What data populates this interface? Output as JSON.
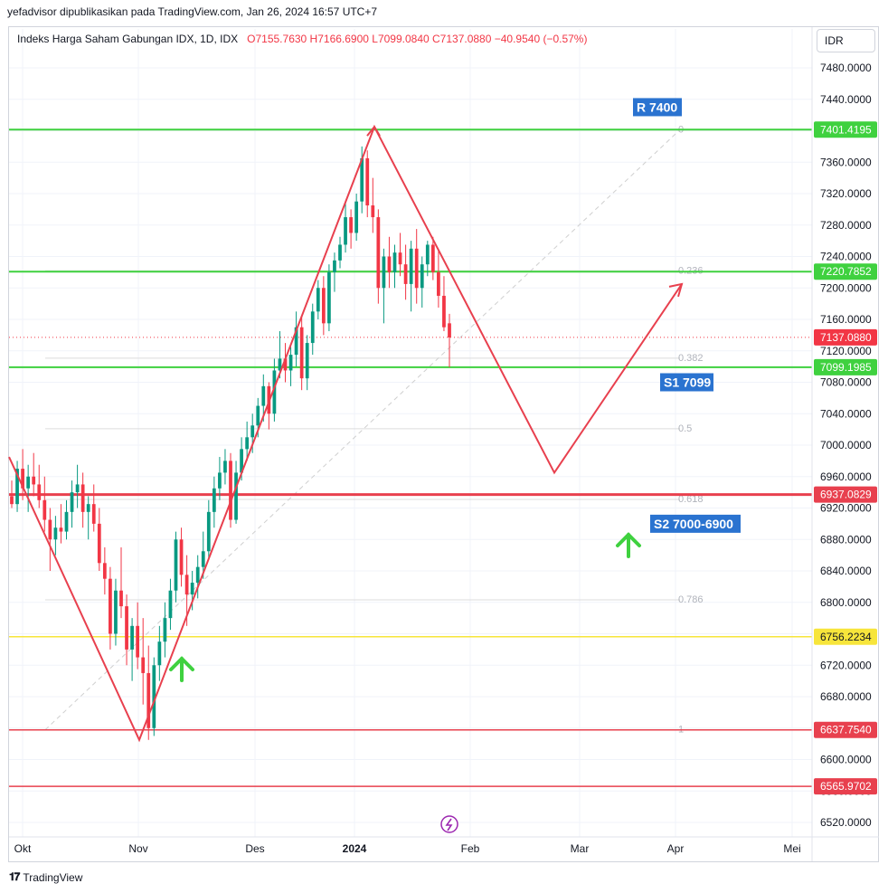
{
  "header": {
    "caption": "yefadvisor dipublikasikan pada TradingView.com, Jan 26, 2024 16:57 UTC+7",
    "symbol": "Indeks Harga Saham Gabungan IDX, 1D, IDX",
    "ohlc": "O7155.7630  H7166.6900  L7099.0840  C7137.0880  −40.9540 (−0.57%)",
    "currency": "IDR"
  },
  "footer": {
    "brand": "TradingView"
  },
  "colors": {
    "up": "#089981",
    "down": "#f23645",
    "green_line": "#3fd13f",
    "red_line": "#e8404e",
    "yellow_line": "#f7e53b",
    "blue_label": "#2a73d0"
  },
  "chart_data": {
    "type": "candlestick",
    "y_range": [
      6497.9,
      7504.3
    ],
    "y_ticks": [
      "7480.0000",
      "7440.0000",
      "7400.0000",
      "7360.0000",
      "7320.0000",
      "7280.0000",
      "7240.0000",
      "7200.0000",
      "7160.0000",
      "7120.0000",
      "7080.0000",
      "7040.0000",
      "7000.0000",
      "6960.0000",
      "6920.0000",
      "6880.0000",
      "6840.0000",
      "6800.0000",
      "6760.0000",
      "6720.0000",
      "6680.0000",
      "6640.0000",
      "6600.0000",
      "6560.0000",
      "6520.0000"
    ],
    "x_labels": [
      {
        "label": "Okt",
        "month": 10
      },
      {
        "label": "Nov",
        "month": 11
      },
      {
        "label": "Des",
        "month": 12
      },
      {
        "label": "2024",
        "month": 13
      },
      {
        "label": "Feb",
        "month": 14
      },
      {
        "label": "Mar",
        "month": 15
      },
      {
        "label": "Apr",
        "month": 16
      },
      {
        "label": "Mei",
        "month": 17
      }
    ],
    "candles": [
      [
        6935,
        6955,
        6920,
        6925
      ],
      [
        6925,
        6980,
        6915,
        6970
      ],
      [
        6970,
        6995,
        6930,
        6945
      ],
      [
        6945,
        6975,
        6915,
        6960
      ],
      [
        6960,
        6990,
        6935,
        6950
      ],
      [
        6950,
        6975,
        6920,
        6930
      ],
      [
        6930,
        6960,
        6890,
        6905
      ],
      [
        6905,
        6920,
        6840,
        6880
      ],
      [
        6880,
        6910,
        6860,
        6895
      ],
      [
        6895,
        6925,
        6875,
        6890
      ],
      [
        6890,
        6930,
        6880,
        6915
      ],
      [
        6915,
        6955,
        6895,
        6940
      ],
      [
        6940,
        6975,
        6920,
        6950
      ],
      [
        6950,
        6965,
        6895,
        6915
      ],
      [
        6915,
        6935,
        6880,
        6925
      ],
      [
        6925,
        6950,
        6890,
        6900
      ],
      [
        6900,
        6920,
        6840,
        6850
      ],
      [
        6850,
        6870,
        6810,
        6830
      ],
      [
        6830,
        6845,
        6740,
        6760
      ],
      [
        6760,
        6830,
        6745,
        6815
      ],
      [
        6815,
        6870,
        6780,
        6795
      ],
      [
        6795,
        6810,
        6720,
        6740
      ],
      [
        6740,
        6780,
        6700,
        6770
      ],
      [
        6770,
        6800,
        6715,
        6730
      ],
      [
        6730,
        6780,
        6670,
        6710
      ],
      [
        6710,
        6745,
        6625,
        6640
      ],
      [
        6640,
        6730,
        6630,
        6720
      ],
      [
        6720,
        6770,
        6700,
        6750
      ],
      [
        6750,
        6800,
        6730,
        6780
      ],
      [
        6780,
        6830,
        6765,
        6815
      ],
      [
        6815,
        6890,
        6800,
        6880
      ],
      [
        6880,
        6895,
        6820,
        6835
      ],
      [
        6835,
        6860,
        6770,
        6810
      ],
      [
        6810,
        6840,
        6790,
        6825
      ],
      [
        6825,
        6860,
        6805,
        6845
      ],
      [
        6845,
        6890,
        6830,
        6865
      ],
      [
        6865,
        6930,
        6855,
        6915
      ],
      [
        6915,
        6960,
        6895,
        6945
      ],
      [
        6945,
        6985,
        6930,
        6965
      ],
      [
        6965,
        6995,
        6950,
        6980
      ],
      [
        6980,
        6990,
        6895,
        6905
      ],
      [
        6905,
        6980,
        6900,
        6965
      ],
      [
        6965,
        7010,
        6955,
        6995
      ],
      [
        6995,
        7030,
        6980,
        7010
      ],
      [
        7010,
        7040,
        6990,
        7025
      ],
      [
        7025,
        7060,
        7010,
        7050
      ],
      [
        7050,
        7090,
        7030,
        7075
      ],
      [
        7075,
        7080,
        7020,
        7040
      ],
      [
        7040,
        7110,
        7030,
        7095
      ],
      [
        7095,
        7145,
        7085,
        7110
      ],
      [
        7110,
        7130,
        7080,
        7095
      ],
      [
        7095,
        7125,
        7075,
        7115
      ],
      [
        7115,
        7170,
        7100,
        7150
      ],
      [
        7150,
        7165,
        7070,
        7085
      ],
      [
        7085,
        7140,
        7070,
        7130
      ],
      [
        7130,
        7180,
        7115,
        7170
      ],
      [
        7170,
        7210,
        7160,
        7200
      ],
      [
        7200,
        7215,
        7140,
        7155
      ],
      [
        7155,
        7230,
        7145,
        7220
      ],
      [
        7220,
        7245,
        7195,
        7235
      ],
      [
        7235,
        7265,
        7225,
        7255
      ],
      [
        7255,
        7310,
        7245,
        7290
      ],
      [
        7290,
        7300,
        7250,
        7270
      ],
      [
        7270,
        7320,
        7260,
        7310
      ],
      [
        7310,
        7380,
        7295,
        7365
      ],
      [
        7365,
        7375,
        7290,
        7305
      ],
      [
        7305,
        7340,
        7270,
        7290
      ],
      [
        7290,
        7300,
        7180,
        7200
      ],
      [
        7200,
        7250,
        7155,
        7240
      ],
      [
        7240,
        7265,
        7200,
        7220
      ],
      [
        7220,
        7255,
        7200,
        7245
      ],
      [
        7245,
        7270,
        7215,
        7230
      ],
      [
        7230,
        7255,
        7185,
        7205
      ],
      [
        7205,
        7260,
        7170,
        7250
      ],
      [
        7250,
        7275,
        7180,
        7200
      ],
      [
        7200,
        7240,
        7175,
        7230
      ],
      [
        7230,
        7260,
        7215,
        7255
      ],
      [
        7255,
        7265,
        7210,
        7220
      ],
      [
        7220,
        7250,
        7175,
        7190
      ],
      [
        7190,
        7215,
        7145,
        7150
      ],
      [
        7155,
        7167,
        7099,
        7137
      ]
    ],
    "levels": [
      {
        "price": 7401.4195,
        "label": "7401.4195",
        "color": "#3fd13f"
      },
      {
        "price": 7220.7852,
        "label": "7220.7852",
        "color": "#3fd13f"
      },
      {
        "price": 7099.1985,
        "label": "7099.1985",
        "color": "#3fd13f"
      },
      {
        "price": 6937.0829,
        "label": "6937.0829",
        "color": "#e8404e"
      },
      {
        "price": 6756.2234,
        "label": "6756.2234",
        "color": "#f7e53b"
      },
      {
        "price": 6637.754,
        "label": "6637.7540",
        "color": "#e8404e"
      },
      {
        "price": 6565.9702,
        "label": "6565.9702",
        "color": "#e8404e"
      }
    ],
    "last_price": {
      "price": 7137.088,
      "label": "7137.0880",
      "color": "#f23645"
    },
    "fib_levels": [
      {
        "ratio": "0",
        "price": 7401.4
      },
      {
        "ratio": "0.236",
        "price": 7221.8
      },
      {
        "ratio": "0.382",
        "price": 7110.7
      },
      {
        "ratio": "0.5",
        "price": 7020.8
      },
      {
        "ratio": "0.618",
        "price": 6931.0
      },
      {
        "ratio": "0.786",
        "price": 6803.1
      },
      {
        "ratio": "1",
        "price": 6637.8
      }
    ],
    "annotations": [
      {
        "text": "R 7400",
        "price": 7430
      },
      {
        "text": "S1 7099",
        "price": 7080
      },
      {
        "text": "S2 7000-6900",
        "price": 6900
      }
    ]
  }
}
